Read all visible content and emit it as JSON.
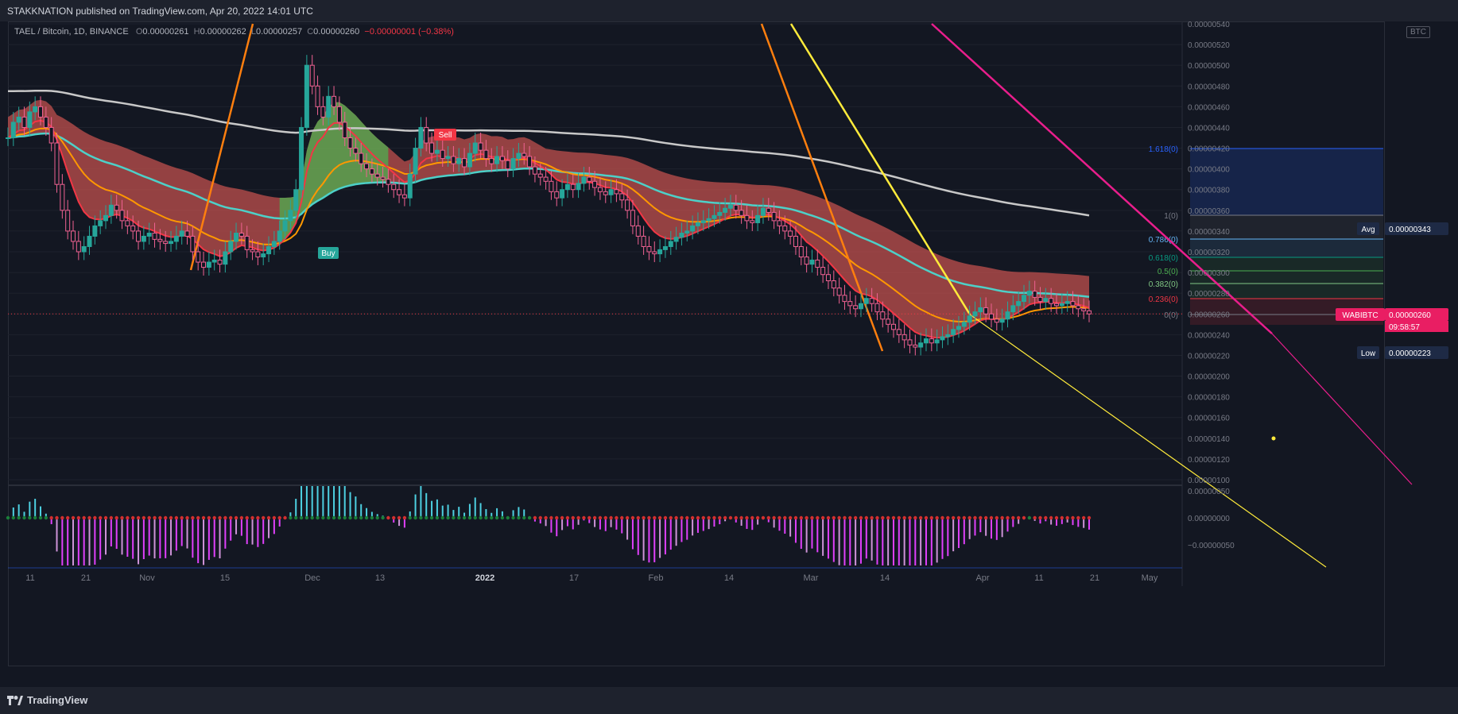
{
  "header": {
    "published": "STAKKNATION published on TradingView.com, Apr 20, 2022 14:01 UTC"
  },
  "legend": {
    "symbol": "TAEL / Bitcoin, 1D, BINANCE",
    "o_label": "O",
    "o": "0.00000261",
    "h_label": "H",
    "h": "0.00000262",
    "l_label": "L",
    "l": "0.00000257",
    "c_label": "C",
    "c": "0.00000260",
    "change": "−0.00000001 (−0.38%)"
  },
  "currency_badge": "BTC",
  "footer": {
    "brand": "TradingView"
  },
  "chart_data": {
    "type": "candlestick",
    "symbol": "TAEL / Bitcoin, 1D, BINANCE",
    "y_axis": {
      "ticks": [
        "0.00000540",
        "0.00000520",
        "0.00000500",
        "0.00000480",
        "0.00000460",
        "0.00000440",
        "0.00000420",
        "0.00000400",
        "0.00000380",
        "0.00000360",
        "0.00000340",
        "0.00000320",
        "0.00000300",
        "0.00000280",
        "0.00000260",
        "0.00000240",
        "0.00000220",
        "0.00000200",
        "0.00000180",
        "0.00000160",
        "0.00000140",
        "0.00000120",
        "0.00000100"
      ],
      "range": [
        1e-06,
        5.45e-06
      ]
    },
    "x_axis": {
      "ticks": [
        "11",
        "21",
        "Nov",
        "15",
        "Dec",
        "13",
        "2022",
        "17",
        "Feb",
        "14",
        "Mar",
        "14",
        "Apr",
        "11",
        "21",
        "May"
      ]
    },
    "price_labels": [
      {
        "label": "Avg",
        "value": "0.00000343"
      },
      {
        "label": "WABIBTC",
        "value": "0.00000260",
        "countdown": "09:58:57"
      },
      {
        "label": "Low",
        "value": "0.00000223"
      }
    ],
    "close_series": [
      4.3e-06,
      4.45e-06,
      4.5e-06,
      4.4e-06,
      4.55e-06,
      4.6e-06,
      4.5e-06,
      4.4e-06,
      4.25e-06,
      3.85e-06,
      3.6e-06,
      3.4e-06,
      3.3e-06,
      3.2e-06,
      3.25e-06,
      3.35e-06,
      3.45e-06,
      3.5e-06,
      3.55e-06,
      3.65e-06,
      3.6e-06,
      3.5e-06,
      3.45e-06,
      3.4e-06,
      3.3e-06,
      3.35e-06,
      3.38e-06,
      3.32e-06,
      3.3e-06,
      3.28e-06,
      3.3e-06,
      3.35e-06,
      3.4e-06,
      3.35e-06,
      3.2e-06,
      3.1e-06,
      3.05e-06,
      3.1e-06,
      3.12e-06,
      3.08e-06,
      3.2e-06,
      3.3e-06,
      3.38e-06,
      3.35e-06,
      3.22e-06,
      3.2e-06,
      3.15e-06,
      3.18e-06,
      3.25e-06,
      3.3e-06,
      3.4e-06,
      3.5e-06,
      3.6e-06,
      3.8e-06,
      4.4e-06,
      5e-06,
      4.8e-06,
      4.6e-06,
      4.5e-06,
      4.7e-06,
      4.6e-06,
      4.45e-06,
      4.3e-06,
      4.2e-06,
      4.15e-06,
      4.05e-06,
      4e-06,
      3.95e-06,
      3.92e-06,
      3.9e-06,
      3.85e-06,
      3.8e-06,
      3.75e-06,
      3.72e-06,
      3.95e-06,
      4.2e-06,
      4.4e-06,
      4.25e-06,
      4.15e-06,
      4.18e-06,
      4.1e-06,
      4.12e-06,
      4.05e-06,
      4.1e-06,
      4.02e-06,
      4.15e-06,
      4.25e-06,
      4.18e-06,
      4.1e-06,
      4.05e-06,
      4.12e-06,
      4.08e-06,
      4e-06,
      4.1e-06,
      4.15e-06,
      4.12e-06,
      4.02e-06,
      3.95e-06,
      3.92e-06,
      3.88e-06,
      3.78e-06,
      3.72e-06,
      3.8e-06,
      3.85e-06,
      3.8e-06,
      3.86e-06,
      3.92e-06,
      3.88e-06,
      3.82e-06,
      3.78e-06,
      3.75e-06,
      3.8e-06,
      3.76e-06,
      3.7e-06,
      3.6e-06,
      3.45e-06,
      3.35e-06,
      3.25e-06,
      3.2e-06,
      3.18e-06,
      3.22e-06,
      3.25e-06,
      3.3e-06,
      3.34e-06,
      3.38e-06,
      3.4e-06,
      3.45e-06,
      3.48e-06,
      3.5e-06,
      3.52e-06,
      3.55e-06,
      3.58e-06,
      3.62e-06,
      3.65e-06,
      3.6e-06,
      3.55e-06,
      3.5e-06,
      3.48e-06,
      3.55e-06,
      3.62e-06,
      3.58e-06,
      3.5e-06,
      3.45e-06,
      3.4e-06,
      3.35e-06,
      3.25e-06,
      3.15e-06,
      3.08e-06,
      3.12e-06,
      3.05e-06,
      2.98e-06,
      2.92e-06,
      2.85e-06,
      2.78e-06,
      2.72e-06,
      2.68e-06,
      2.65e-06,
      2.7e-06,
      2.75e-06,
      2.7e-06,
      2.62e-06,
      2.55e-06,
      2.5e-06,
      2.45e-06,
      2.4e-06,
      2.35e-06,
      2.3e-06,
      2.28e-06,
      2.32e-06,
      2.36e-06,
      2.32e-06,
      2.35e-06,
      2.38e-06,
      2.4e-06,
      2.45e-06,
      2.48e-06,
      2.52e-06,
      2.58e-06,
      2.62e-06,
      2.66e-06,
      2.6e-06,
      2.55e-06,
      2.52e-06,
      2.55e-06,
      2.62e-06,
      2.68e-06,
      2.72e-06,
      2.78e-06,
      2.82e-06,
      2.76e-06,
      2.72e-06,
      2.75e-06,
      2.7e-06,
      2.68e-06,
      2.7e-06,
      2.72e-06,
      2.68e-06,
      2.65e-06,
      2.63e-06,
      2.6e-06
    ]
  },
  "drawings": {
    "buy_label": "Buy",
    "sell_label": "Sell",
    "fib_levels": [
      {
        "label": "1.618(0)",
        "color": "#2962ff"
      },
      {
        "label": "1(0)",
        "color": "#787b86"
      },
      {
        "label": "0.786(0)",
        "color": "#64b5f6"
      },
      {
        "label": "0.618(0)",
        "color": "#089981"
      },
      {
        "label": "0.5(0)",
        "color": "#4caf50"
      },
      {
        "label": "0.382(0)",
        "color": "#81c784"
      },
      {
        "label": "0.236(0)",
        "color": "#f23645"
      },
      {
        "label": "0(0)",
        "color": "#787b86"
      }
    ]
  },
  "colors": {
    "bg": "#131722",
    "up": "#26a69a",
    "down": "#f06292",
    "ribbon_bear": "#c0504d",
    "ribbon_bull": "#4caf50",
    "ma_red": "#f23645",
    "ma_orange": "#ff9800",
    "ma_teal": "#4dd0c8",
    "ma_white": "#c8c8c8",
    "line_yellow": "#ffeb3b",
    "line_magenta": "#e91e8c"
  }
}
